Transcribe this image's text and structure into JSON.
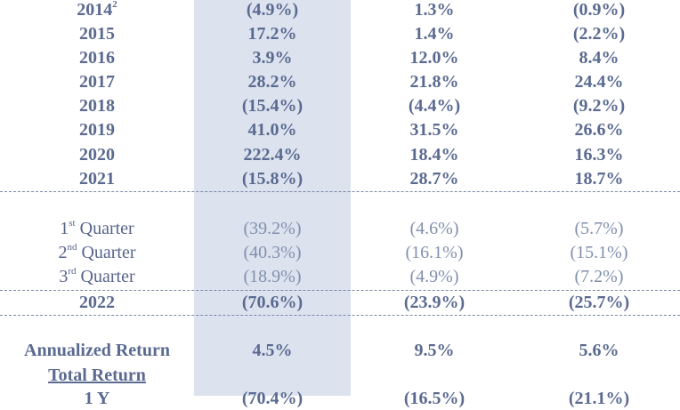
{
  "year_rows": [
    {
      "year": "2014",
      "year_sup": "2",
      "v1": "(4.9%)",
      "v2": "1.3%",
      "v3": "(0.9%)"
    },
    {
      "year": "2015",
      "year_sup": "",
      "v1": "17.2%",
      "v2": "1.4%",
      "v3": "(2.2%)"
    },
    {
      "year": "2016",
      "year_sup": "",
      "v1": "3.9%",
      "v2": "12.0%",
      "v3": "8.4%"
    },
    {
      "year": "2017",
      "year_sup": "",
      "v1": "28.2%",
      "v2": "21.8%",
      "v3": "24.4%"
    },
    {
      "year": "2018",
      "year_sup": "",
      "v1": "(15.4%)",
      "v2": "(4.4%)",
      "v3": "(9.2%)"
    },
    {
      "year": "2019",
      "year_sup": "",
      "v1": "41.0%",
      "v2": "31.5%",
      "v3": "26.6%"
    },
    {
      "year": "2020",
      "year_sup": "",
      "v1": "222.4%",
      "v2": "18.4%",
      "v3": "16.3%"
    },
    {
      "year": "2021",
      "year_sup": "",
      "v1": "(15.8%)",
      "v2": "28.7%",
      "v3": "18.7%"
    }
  ],
  "quarter_rows": [
    {
      "num": "1",
      "sup": "st",
      "word": "Quarter",
      "v1": "(39.2%)",
      "v2": "(4.6%)",
      "v3": "(5.7%)"
    },
    {
      "num": "2",
      "sup": "nd",
      "word": "Quarter",
      "v1": "(40.3%)",
      "v2": "(16.1%)",
      "v3": "(15.1%)"
    },
    {
      "num": "3",
      "sup": "rd",
      "word": "Quarter",
      "v1": "(18.9%)",
      "v2": "(4.9%)",
      "v3": "(7.2%)"
    }
  ],
  "ytd_row": {
    "year": "2022",
    "v1": "(70.6%)",
    "v2": "(23.9%)",
    "v3": "(25.7%)"
  },
  "annualized_row": {
    "label": "Annualized Return",
    "v1": "4.5%",
    "v2": "9.5%",
    "v3": "5.6%"
  },
  "total_return_heading": "Total Return",
  "partial_row": {
    "label": "1 Y",
    "v1": "(70.4%)",
    "v2": "(16.5%)",
    "v3": "(21.1%)"
  },
  "colors": {
    "text_bold": "#5a6a90",
    "text_light": "#8190ae",
    "shade": "#dce3ef",
    "rule": "#7b89a8"
  }
}
